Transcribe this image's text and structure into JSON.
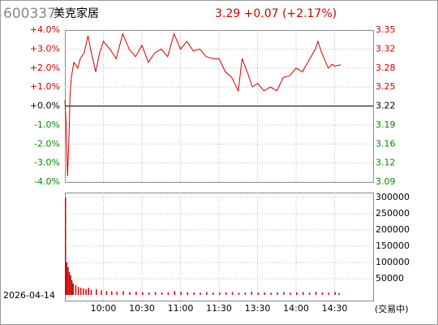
{
  "chart_data": [
    {
      "type": "line",
      "title": "600337",
      "subtitle": "美克家居",
      "quote": "3.29 +0.07 (+2.17%)",
      "date": "2026-04-14",
      "status": "(交易中)",
      "xlim": [
        0,
        240
      ],
      "xticks": [
        {
          "value": 30,
          "label": "10:00"
        },
        {
          "value": 60,
          "label": "10:30"
        },
        {
          "value": 90,
          "label": "11:00"
        },
        {
          "value": 120,
          "label": "11:30"
        },
        {
          "value": 150,
          "label": "13:30"
        },
        {
          "value": 180,
          "label": "14:00"
        },
        {
          "value": 210,
          "label": "14:30"
        }
      ],
      "ylim": [
        -4,
        4
      ],
      "yticks": [
        {
          "value": 4,
          "label": "+4.0%"
        },
        {
          "value": 3,
          "label": "+3.0%"
        },
        {
          "value": 2,
          "label": "+2.0%"
        },
        {
          "value": 1,
          "label": "+1.0%"
        },
        {
          "value": 0,
          "label": "+0.0%"
        },
        {
          "value": -1,
          "label": "-1.0%"
        },
        {
          "value": -2,
          "label": "-2.0%"
        },
        {
          "value": -3,
          "label": "-3.0%"
        },
        {
          "value": -4,
          "label": "-4.0%"
        }
      ],
      "y2lim": [
        3.0912,
        3.3488
      ],
      "y2ticks": [
        {
          "value": 3.3488,
          "label": "3.35"
        },
        {
          "value": 3.3166,
          "label": "3.32"
        },
        {
          "value": 3.2844,
          "label": "3.28"
        },
        {
          "value": 3.2522,
          "label": "3.25"
        },
        {
          "value": 3.22,
          "label": "3.22"
        },
        {
          "value": 3.1878,
          "label": "3.19"
        },
        {
          "value": 3.1556,
          "label": "3.16"
        },
        {
          "value": 3.1234,
          "label": "3.12"
        },
        {
          "value": 3.0912,
          "label": "3.09"
        }
      ],
      "grid": true,
      "series": [
        {
          "color": "#cc0000",
          "x": [
            0,
            1,
            2,
            3,
            4,
            5,
            7,
            10,
            12,
            15,
            18,
            20,
            24,
            27,
            30,
            35,
            40,
            45,
            50,
            55,
            60,
            65,
            70,
            75,
            80,
            85,
            90,
            95,
            100,
            105,
            110,
            115,
            120,
            125,
            130,
            135,
            138,
            142,
            146,
            150,
            155,
            160,
            165,
            170,
            175,
            180,
            185,
            190,
            195,
            197,
            200,
            205,
            208,
            210,
            215
          ],
          "values": [
            0.3,
            -1.0,
            -3.7,
            -2.0,
            0.5,
            1.5,
            2.3,
            2.0,
            2.5,
            2.8,
            3.7,
            3.0,
            1.8,
            2.8,
            3.4,
            3.0,
            2.5,
            3.8,
            3.0,
            2.6,
            3.2,
            2.3,
            2.8,
            3.0,
            2.6,
            3.8,
            3.0,
            3.4,
            2.9,
            3.0,
            2.6,
            2.5,
            2.5,
            1.8,
            1.5,
            0.8,
            2.5,
            1.8,
            1.0,
            1.2,
            0.8,
            1.0,
            0.8,
            1.5,
            1.6,
            2.0,
            1.8,
            2.4,
            3.0,
            3.4,
            2.8,
            2.0,
            2.2,
            2.1,
            2.17
          ]
        }
      ]
    },
    {
      "type": "bar",
      "ylim": [
        0,
        315000
      ],
      "yticks": [
        300000,
        250000,
        200000,
        150000,
        100000,
        50000
      ],
      "x": [
        0,
        1,
        2,
        3,
        4,
        5,
        6,
        8,
        10,
        12,
        14,
        16,
        18,
        20,
        24,
        28,
        32,
        36,
        40,
        45,
        50,
        55,
        60,
        65,
        70,
        75,
        80,
        85,
        90,
        95,
        100,
        105,
        110,
        115,
        120,
        125,
        130,
        135,
        140,
        145,
        150,
        155,
        160,
        165,
        170,
        175,
        180,
        185,
        190,
        195,
        200,
        205,
        210,
        213
      ],
      "values": [
        300000,
        100000,
        85000,
        70000,
        60000,
        45000,
        35000,
        30000,
        25000,
        22000,
        20000,
        18000,
        22000,
        15000,
        18000,
        14000,
        12000,
        11000,
        10000,
        12000,
        9000,
        10000,
        9000,
        8000,
        9000,
        8000,
        8000,
        12000,
        9000,
        8000,
        8000,
        7000,
        9000,
        7000,
        7000,
        8000,
        9000,
        7000,
        8000,
        10000,
        7000,
        8000,
        7000,
        8000,
        9000,
        7000,
        8000,
        9000,
        7000,
        10000,
        8000,
        7000,
        9000,
        6000
      ],
      "color": "#cc0000"
    }
  ]
}
